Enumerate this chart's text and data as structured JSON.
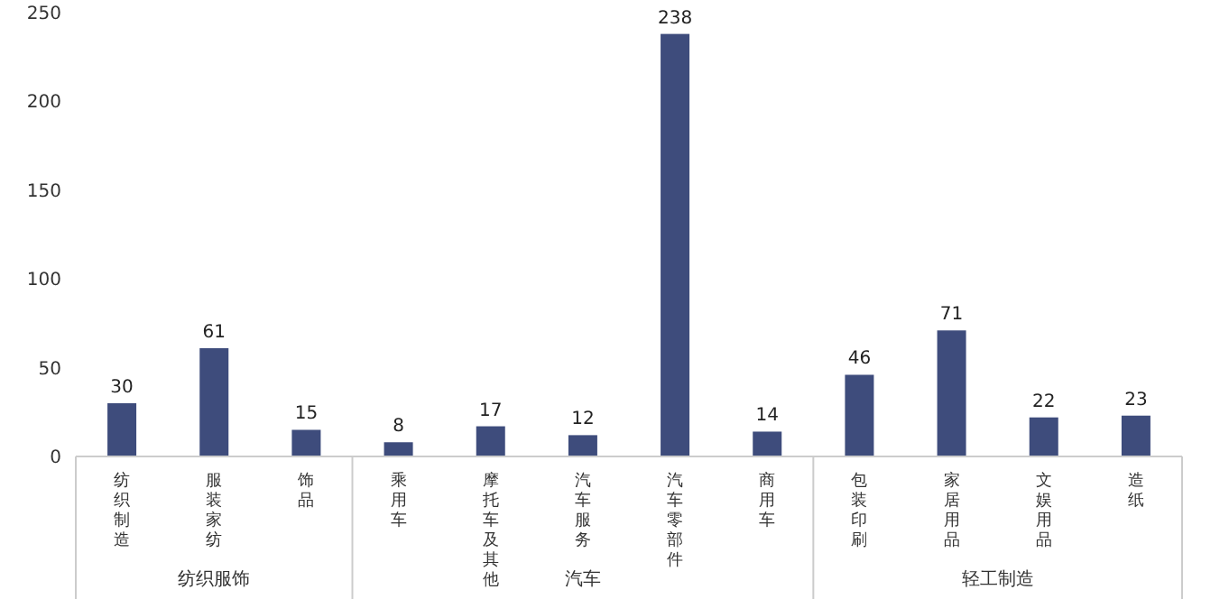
{
  "chart_data": {
    "type": "bar",
    "categories": [
      "纺织制造",
      "服装家纺",
      "饰品",
      "乘用车",
      "摩托车及其他",
      "汽车服务",
      "汽车零部件",
      "商用车",
      "包装印刷",
      "家居用品",
      "文娱用品",
      "造纸"
    ],
    "values": [
      30,
      61,
      15,
      8,
      17,
      12,
      238,
      14,
      46,
      71,
      22,
      23
    ],
    "color": "#3e4c7c",
    "ylim": [
      0,
      250
    ],
    "yticks": [
      0,
      50,
      100,
      150,
      200,
      250
    ],
    "data_labels": true,
    "annotations": [
      "纺织服饰",
      "汽车",
      "轻工制造"
    ]
  }
}
